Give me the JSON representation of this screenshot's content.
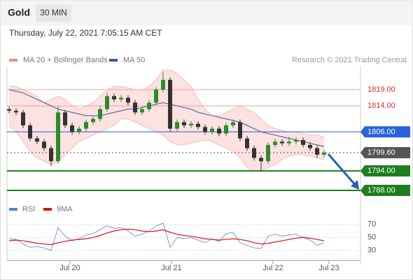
{
  "header": {
    "symbol": "Gold",
    "interval": "30 MIN",
    "datetime": "Thursday, July 22, 2021 7:05:15 AM CET",
    "credit": "Research © 2021 Trading Central"
  },
  "chart_data": {
    "type": "candlestick",
    "up_color": "#2d8a2d",
    "down_color": "#333333",
    "candles": [
      [
        1813,
        1813.8,
        1811.7,
        1812.5
      ],
      [
        1812.5,
        1813.3,
        1811.2,
        1812
      ],
      [
        1812,
        1812.8,
        1807.2,
        1808
      ],
      [
        1808,
        1808.8,
        1803.2,
        1804
      ],
      [
        1804,
        1804.8,
        1802.2,
        1803
      ],
      [
        1803,
        1803.8,
        1800.2,
        1801
      ],
      [
        1801,
        1801.8,
        1795.5,
        1797
      ],
      [
        1797,
        1814,
        1796.2,
        1812
      ],
      [
        1812,
        1812.8,
        1807.2,
        1808
      ],
      [
        1808,
        1808.8,
        1805.2,
        1806
      ],
      [
        1806,
        1807.8,
        1805.2,
        1807
      ],
      [
        1807,
        1809.8,
        1806.2,
        1809
      ],
      [
        1809,
        1810.8,
        1808.2,
        1810
      ],
      [
        1810,
        1813.8,
        1809.2,
        1813
      ],
      [
        1813,
        1818,
        1812.2,
        1817
      ],
      [
        1817,
        1817.8,
        1815.2,
        1816
      ],
      [
        1816,
        1817.3,
        1815.2,
        1816.5
      ],
      [
        1816.5,
        1817.3,
        1814.2,
        1815
      ],
      [
        1815,
        1815.8,
        1811.2,
        1812
      ],
      [
        1812,
        1813.8,
        1811.2,
        1813
      ],
      [
        1813,
        1815.8,
        1812.2,
        1815
      ],
      [
        1815,
        1819.8,
        1814.2,
        1819
      ],
      [
        1819,
        1824.5,
        1818.2,
        1822
      ],
      [
        1822,
        1822.8,
        1806,
        1807
      ],
      [
        1807,
        1809.8,
        1806.2,
        1809
      ],
      [
        1809,
        1809.8,
        1807.2,
        1808
      ],
      [
        1808,
        1809.3,
        1807.2,
        1808.5
      ],
      [
        1808.5,
        1809.3,
        1806.7,
        1807.5
      ],
      [
        1807.5,
        1808.3,
        1805.2,
        1806
      ],
      [
        1806,
        1807.8,
        1805.2,
        1807
      ],
      [
        1807,
        1807.8,
        1804.7,
        1805.5
      ],
      [
        1805.5,
        1808.8,
        1804.7,
        1808
      ],
      [
        1808,
        1809.8,
        1807.2,
        1809
      ],
      [
        1809,
        1809.8,
        1803.2,
        1804
      ],
      [
        1804,
        1804.8,
        1800.2,
        1801
      ],
      [
        1801,
        1801.8,
        1797.2,
        1798
      ],
      [
        1798,
        1798.8,
        1793.8,
        1797
      ],
      [
        1797,
        1802.8,
        1796.2,
        1802
      ],
      [
        1802,
        1803.8,
        1801.2,
        1803
      ],
      [
        1803,
        1803.8,
        1801.7,
        1802.5
      ],
      [
        1802.5,
        1804.5,
        1801.7,
        1803
      ],
      [
        1803,
        1804.3,
        1802.2,
        1803.5
      ],
      [
        1803.5,
        1804.3,
        1801.2,
        1802
      ],
      [
        1802,
        1802.8,
        1800.2,
        1801
      ],
      [
        1801,
        1801.8,
        1798,
        1799
      ],
      [
        1799,
        1800.4,
        1798.2,
        1799.6
      ]
    ],
    "overlays": [
      {
        "name": "MA 20 + Bollinger Bands",
        "color": "#f28b82",
        "upper": [
          1820,
          1820,
          1819,
          1818,
          1817,
          1815,
          1816,
          1817,
          1816,
          1814,
          1813,
          1814,
          1815,
          1817,
          1819,
          1820,
          1820,
          1819.5,
          1819,
          1819,
          1820,
          1822,
          1825,
          1825,
          1824,
          1822,
          1820,
          1816,
          1813,
          1811,
          1811,
          1812,
          1813,
          1814,
          1813,
          1812,
          1810,
          1808,
          1807,
          1806.5,
          1806,
          1806,
          1805.5,
          1805,
          1805,
          1804.5
        ],
        "lower": [
          1808,
          1806,
          1803,
          1800,
          1798,
          1797,
          1796,
          1797,
          1799,
          1801,
          1803,
          1804,
          1805,
          1806,
          1807,
          1808,
          1810,
          1810,
          1809,
          1808,
          1807,
          1806,
          1805,
          1803,
          1802,
          1802,
          1802.5,
          1803,
          1803.5,
          1803,
          1802,
          1801,
          1800,
          1798,
          1795,
          1794,
          1794,
          1795,
          1796,
          1797.5,
          1798.5,
          1799,
          1799,
          1798.5,
          1798,
          1797.5
        ]
      },
      {
        "name": "MA 50",
        "color": "#3a5a98",
        "values": [
          1819,
          1818.5,
          1818,
          1817,
          1816,
          1815,
          1814,
          1813,
          1812.5,
          1812,
          1811.5,
          1811,
          1811,
          1811,
          1811.5,
          1812,
          1812.5,
          1813,
          1813,
          1813.5,
          1814,
          1814.5,
          1815,
          1814.5,
          1814,
          1813.5,
          1813,
          1812,
          1811.5,
          1811,
          1810.5,
          1810,
          1809.5,
          1809,
          1808,
          1807,
          1806,
          1805.5,
          1805,
          1804.5,
          1804,
          1803.5,
          1803,
          1802.5,
          1802,
          1801.5
        ]
      }
    ],
    "levels": [
      {
        "value": 1819,
        "label": "1819.00",
        "color": "#f4a0a0",
        "text_color": "#d32f2f",
        "boxed": false,
        "dotted": false,
        "width": 1
      },
      {
        "value": 1814,
        "label": "1814.00",
        "color": "#f4a0a0",
        "text_color": "#d32f2f",
        "boxed": false,
        "dotted": false,
        "width": 1
      },
      {
        "value": 1806,
        "label": "1806.00",
        "color": "#2962d9",
        "text_color": "#ffffff",
        "boxed": true,
        "dotted": false,
        "width": 1
      },
      {
        "value": 1799.6,
        "label": "1799.60",
        "color": "#555555",
        "text_color": "#ffffff",
        "boxed": true,
        "dotted": true,
        "width": 1
      },
      {
        "value": 1794,
        "label": "1794.00",
        "color": "#1e7d1e",
        "text_color": "#ffffff",
        "boxed": true,
        "dotted": false,
        "width": 2
      },
      {
        "value": 1788,
        "label": "1788.00",
        "color": "#1e7d1e",
        "text_color": "#ffffff",
        "boxed": true,
        "dotted": false,
        "width": 2
      }
    ],
    "ylim": [
      1785,
      1826
    ],
    "xlim": [
      -0.3,
      50.2
    ],
    "xticks": [
      {
        "value": 8.7,
        "label": "Jul 20"
      },
      {
        "value": 23.2,
        "label": "Jul 21"
      },
      {
        "value": 37.7,
        "label": "Jul 22"
      },
      {
        "value": 45.7,
        "label": "Jul 23"
      }
    ],
    "rsi": {
      "ylim": [
        19,
        87
      ],
      "yticks": [
        70,
        50,
        30
      ],
      "series": [
        {
          "name": "RSI",
          "color": "#5b7fd4",
          "values": [
            48,
            47,
            40,
            35,
            36,
            34,
            30,
            65,
            52,
            45,
            48,
            54,
            56,
            62,
            68,
            64,
            65,
            60,
            52,
            55,
            60,
            68,
            72,
            35,
            50,
            48,
            50,
            46,
            42,
            48,
            44,
            56,
            58,
            42,
            38,
            34,
            33,
            52,
            55,
            52,
            54,
            55,
            50,
            46,
            38,
            42
          ]
        },
        {
          "name": "9MA",
          "color": "#e01010",
          "values": [
            45,
            46,
            45,
            43,
            41,
            40,
            39,
            42,
            44,
            46,
            47,
            48,
            50,
            53,
            57,
            60,
            62,
            63,
            62,
            60,
            59,
            60,
            62,
            58,
            55,
            53,
            52,
            50,
            48,
            47,
            46,
            47,
            48,
            47,
            45,
            42,
            40,
            41,
            43,
            45,
            47,
            49,
            50,
            49,
            47,
            45
          ]
        }
      ]
    }
  }
}
